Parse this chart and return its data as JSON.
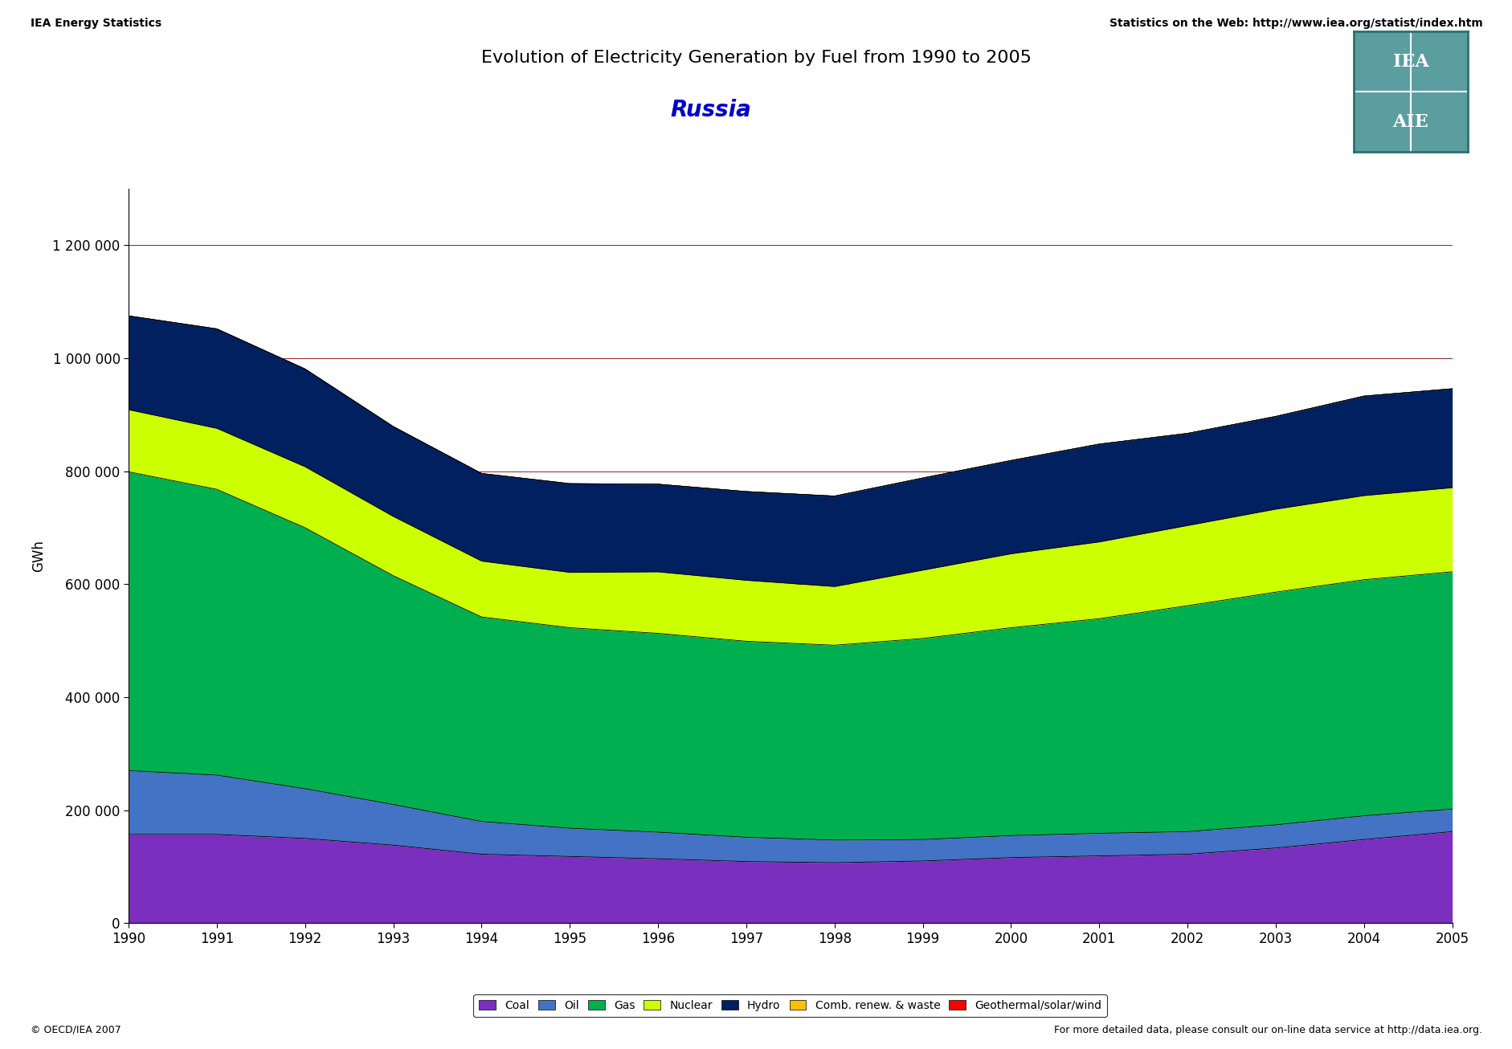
{
  "title": "Evolution of Electricity Generation by Fuel from 1990 to 2005",
  "subtitle": "Russia",
  "years": [
    1990,
    1991,
    1992,
    1993,
    1994,
    1995,
    1996,
    1997,
    1998,
    1999,
    2000,
    2001,
    2002,
    2003,
    2004,
    2005
  ],
  "ylabel": "GWh",
  "ylim": [
    0,
    1300000
  ],
  "yticks": [
    0,
    200000,
    400000,
    600000,
    800000,
    1000000,
    1200000
  ],
  "header_left": "IEA Energy Statistics",
  "header_right": "Statistics on the Web: http://www.iea.org/statist/index.htm",
  "footer_left": "© OECD/IEA 2007",
  "footer_right": "For more detailed data, please consult our on-line data service at http://data.iea.org.",
  "series": {
    "Coal": {
      "color": "#7B2FBE",
      "values": [
        157000,
        157000,
        150000,
        138000,
        122000,
        118000,
        114000,
        109000,
        107000,
        110000,
        116000,
        119000,
        122000,
        133000,
        148000,
        162000
      ]
    },
    "Oil": {
      "color": "#4472C4",
      "values": [
        113000,
        105000,
        88000,
        72000,
        58000,
        50000,
        47000,
        43000,
        40000,
        38000,
        39000,
        40000,
        40000,
        41000,
        42000,
        40000
      ]
    },
    "Gas": {
      "color": "#00B050",
      "values": [
        529000,
        506000,
        462000,
        405000,
        362000,
        355000,
        352000,
        347000,
        345000,
        356000,
        368000,
        380000,
        400000,
        412000,
        418000,
        420000
      ]
    },
    "Nuclear": {
      "color": "#CCFF00",
      "values": [
        110000,
        108000,
        108000,
        105000,
        99000,
        98000,
        109000,
        108000,
        104000,
        121000,
        131000,
        136000,
        142000,
        147000,
        149000,
        149000
      ]
    },
    "Hydro": {
      "color": "#002060",
      "values": [
        166000,
        176000,
        173000,
        159000,
        155000,
        157000,
        155000,
        157000,
        160000,
        163000,
        165000,
        173000,
        163000,
        164000,
        176000,
        175000
      ]
    },
    "Comb. renew. & waste": {
      "color": "#FFC000",
      "values": [
        0,
        0,
        0,
        0,
        0,
        0,
        0,
        0,
        0,
        0,
        0,
        0,
        0,
        0,
        0,
        0
      ]
    },
    "Geothermal/solar/wind": {
      "color": "#FF0000",
      "values": [
        0,
        0,
        0,
        0,
        0,
        0,
        0,
        0,
        0,
        0,
        0,
        0,
        0,
        0,
        0,
        0
      ]
    }
  },
  "background_color": "#FFFFFF",
  "plot_bg_color": "#FFFFFF",
  "grid_color": "#800000",
  "title_fontsize": 16,
  "subtitle_fontsize": 20,
  "axis_fontsize": 12,
  "tick_fontsize": 12,
  "logo_color1": "#5B9EA0",
  "logo_color2": "#5B9EA0"
}
